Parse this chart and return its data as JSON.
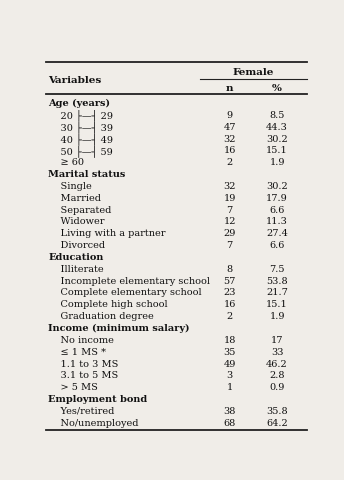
{
  "title_col": "Variables",
  "header_group": "Female",
  "col_headers": [
    "n",
    "%"
  ],
  "rows": [
    {
      "label": "Age (years)",
      "bold": true,
      "n": "",
      "pct": ""
    },
    {
      "label": "    20 ├—┤ 29",
      "bold": false,
      "n": "9",
      "pct": "8.5"
    },
    {
      "label": "    30 ├—┤ 39",
      "bold": false,
      "n": "47",
      "pct": "44.3"
    },
    {
      "label": "    40 ├—┤ 49",
      "bold": false,
      "n": "32",
      "pct": "30.2"
    },
    {
      "label": "    50 ├—┤ 59",
      "bold": false,
      "n": "16",
      "pct": "15.1"
    },
    {
      "label": "    ≥ 60",
      "bold": false,
      "n": "2",
      "pct": "1.9"
    },
    {
      "label": "Marital status",
      "bold": true,
      "n": "",
      "pct": ""
    },
    {
      "label": "    Single",
      "bold": false,
      "n": "32",
      "pct": "30.2"
    },
    {
      "label": "    Married",
      "bold": false,
      "n": "19",
      "pct": "17.9"
    },
    {
      "label": "    Separated",
      "bold": false,
      "n": "7",
      "pct": "6.6"
    },
    {
      "label": "    Widower",
      "bold": false,
      "n": "12",
      "pct": "11.3"
    },
    {
      "label": "    Living with a partner",
      "bold": false,
      "n": "29",
      "pct": "27.4"
    },
    {
      "label": "    Divorced",
      "bold": false,
      "n": "7",
      "pct": "6.6"
    },
    {
      "label": "Education",
      "bold": true,
      "n": "",
      "pct": ""
    },
    {
      "label": "    Illiterate",
      "bold": false,
      "n": "8",
      "pct": "7.5"
    },
    {
      "label": "    Incomplete elementary school",
      "bold": false,
      "n": "57",
      "pct": "53.8"
    },
    {
      "label": "    Complete elementary school",
      "bold": false,
      "n": "23",
      "pct": "21.7"
    },
    {
      "label": "    Complete high school",
      "bold": false,
      "n": "16",
      "pct": "15.1"
    },
    {
      "label": "    Graduation degree",
      "bold": false,
      "n": "2",
      "pct": "1.9"
    },
    {
      "label": "Income (minimum salary)",
      "bold": true,
      "n": "",
      "pct": ""
    },
    {
      "label": "    No income",
      "bold": false,
      "n": "18",
      "pct": "17"
    },
    {
      "label": "    ≤ 1 MS *",
      "bold": false,
      "n": "35",
      "pct": "33"
    },
    {
      "label": "    1.1 to 3 MS",
      "bold": false,
      "n": "49",
      "pct": "46.2"
    },
    {
      "label": "    3.1 to 5 MS",
      "bold": false,
      "n": "3",
      "pct": "2.8"
    },
    {
      "label": "    > 5 MS",
      "bold": false,
      "n": "1",
      "pct": "0.9"
    },
    {
      "label": "Employment bond",
      "bold": true,
      "n": "",
      "pct": ""
    },
    {
      "label": "    Yes/retired",
      "bold": false,
      "n": "38",
      "pct": "35.8"
    },
    {
      "label": "    No/unemployed",
      "bold": false,
      "n": "68",
      "pct": "64.2"
    }
  ],
  "bg_color": "#f0ede8",
  "text_color": "#111111",
  "line_color": "#222222",
  "font_size": 7.0,
  "header_font_size": 7.5
}
